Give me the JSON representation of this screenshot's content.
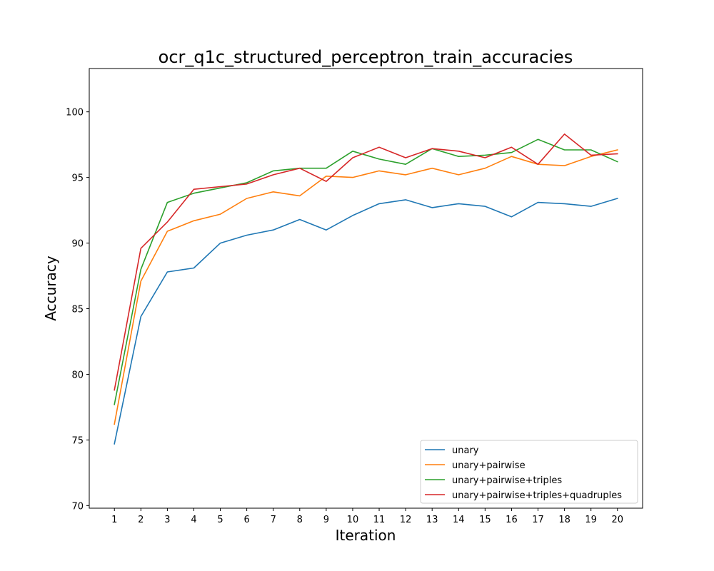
{
  "chart_data": {
    "type": "line",
    "title": "ocr_q1c_structured_perceptron_train_accuracies",
    "xlabel": "Iteration",
    "ylabel": "Accuracy",
    "x": [
      1,
      2,
      3,
      4,
      5,
      6,
      7,
      8,
      9,
      10,
      11,
      12,
      13,
      14,
      15,
      16,
      17,
      18,
      19,
      20
    ],
    "xticks": [
      "1",
      "2",
      "3",
      "4",
      "5",
      "6",
      "7",
      "8",
      "9",
      "10",
      "11",
      "12",
      "13",
      "14",
      "15",
      "16",
      "17",
      "18",
      "19",
      "20"
    ],
    "xlim": [
      0.05,
      20.95
    ],
    "ylim": [
      69.8,
      103.3
    ],
    "yticks": [
      70,
      75,
      80,
      85,
      90,
      95,
      100
    ],
    "ytick_labels": [
      "70",
      "75",
      "80",
      "85",
      "90",
      "95",
      "100"
    ],
    "grid": false,
    "legend_position": "lower-right",
    "series": [
      {
        "name": "unary",
        "color": "#1f77b4",
        "values": [
          74.7,
          84.4,
          87.8,
          88.1,
          90.0,
          90.6,
          91.0,
          91.8,
          91.0,
          92.1,
          93.0,
          93.3,
          92.7,
          93.0,
          92.8,
          92.0,
          93.1,
          93.0,
          92.8,
          93.4
        ]
      },
      {
        "name": "unary+pairwise",
        "color": "#ff7f0e",
        "values": [
          76.2,
          87.1,
          90.9,
          91.7,
          92.2,
          93.4,
          93.9,
          93.6,
          95.1,
          95.0,
          95.5,
          95.2,
          95.7,
          95.2,
          95.7,
          96.6,
          96.0,
          95.9,
          96.6,
          97.1
        ]
      },
      {
        "name": "unary+pairwise+triples",
        "color": "#2ca02c",
        "values": [
          77.7,
          88.0,
          93.1,
          93.8,
          94.2,
          94.6,
          95.5,
          95.7,
          95.7,
          97.0,
          96.4,
          96.0,
          97.2,
          96.6,
          96.7,
          96.9,
          97.9,
          97.1,
          97.1,
          96.2
        ]
      },
      {
        "name": "unary+pairwise+triples+quadruples",
        "color": "#d62728",
        "values": [
          78.8,
          89.6,
          91.6,
          94.1,
          94.3,
          94.5,
          95.2,
          95.7,
          94.7,
          96.5,
          97.3,
          96.5,
          97.2,
          97.0,
          96.5,
          97.3,
          96.0,
          98.3,
          96.7,
          96.8
        ]
      }
    ]
  }
}
